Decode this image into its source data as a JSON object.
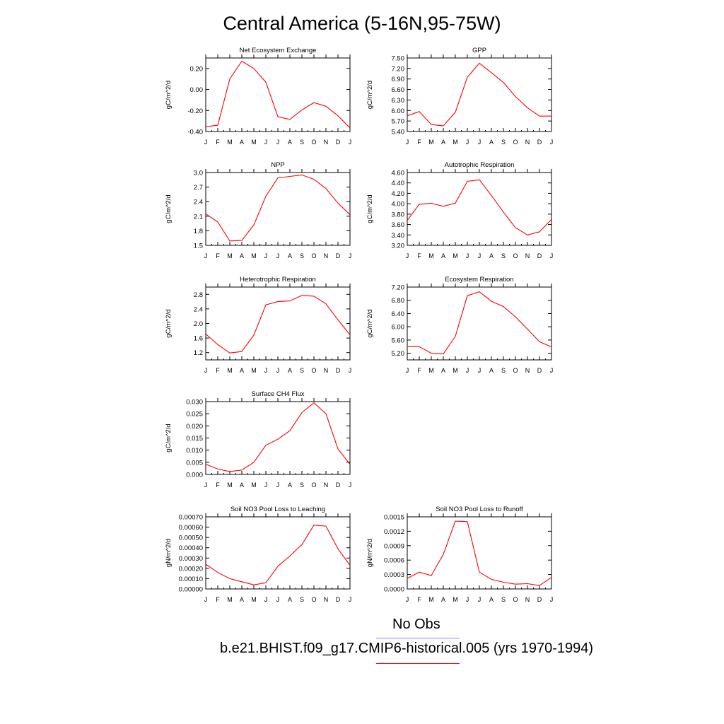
{
  "title": "Central America (5-16N,95-75W)",
  "legend": [
    {
      "label": "No Obs",
      "color": "#8080ff"
    },
    {
      "label": "b.e21.BHIST.f09_g17.CMIP6-historical.005 (yrs 1970-1994)",
      "color": "#ff0000"
    }
  ],
  "chart_data": [
    {
      "type": "line",
      "title": "Net Ecosystem Exchange",
      "ylabel": "gC/m^2/d",
      "categories": [
        "J",
        "F",
        "M",
        "A",
        "M",
        "J",
        "J",
        "A",
        "S",
        "O",
        "N",
        "D",
        "J"
      ],
      "ylim": [
        -0.4,
        0.3
      ],
      "yticks": [
        "0.20",
        "0.00",
        "-0.20",
        "-0.40"
      ],
      "series": [
        {
          "color": "#ff0000",
          "values": [
            -0.355,
            -0.34,
            0.1,
            0.27,
            0.2,
            0.07,
            -0.26,
            -0.285,
            -0.195,
            -0.125,
            -0.16,
            -0.25,
            -0.365
          ]
        }
      ]
    },
    {
      "type": "line",
      "title": "GPP",
      "ylabel": "gC/m^2/d",
      "categories": [
        "J",
        "F",
        "M",
        "A",
        "M",
        "J",
        "J",
        "A",
        "S",
        "O",
        "N",
        "D",
        "J"
      ],
      "ylim": [
        5.4,
        7.5
      ],
      "yticks": [
        "7.50",
        "7.20",
        "6.90",
        "6.60",
        "6.30",
        "6.00",
        "5.70",
        "5.40"
      ],
      "series": [
        {
          "color": "#ff0000",
          "values": [
            5.85,
            5.97,
            5.6,
            5.56,
            5.95,
            6.95,
            7.35,
            7.08,
            6.8,
            6.4,
            6.08,
            5.84,
            5.84
          ]
        }
      ]
    },
    {
      "type": "line",
      "title": "NPP",
      "ylabel": "gC/m^2/d",
      "categories": [
        "J",
        "F",
        "M",
        "A",
        "M",
        "J",
        "J",
        "A",
        "S",
        "O",
        "N",
        "D",
        "J"
      ],
      "ylim": [
        1.5,
        3.0
      ],
      "yticks": [
        "3.0",
        "2.7",
        "2.4",
        "2.1",
        "1.8",
        "1.5"
      ],
      "series": [
        {
          "color": "#ff0000",
          "values": [
            2.15,
            1.98,
            1.59,
            1.6,
            1.92,
            2.51,
            2.89,
            2.92,
            2.95,
            2.86,
            2.67,
            2.37,
            2.13
          ]
        }
      ]
    },
    {
      "type": "line",
      "title": "Autotrophic Respiration",
      "ylabel": "gC/m^2/d",
      "categories": [
        "J",
        "F",
        "M",
        "A",
        "M",
        "J",
        "J",
        "A",
        "S",
        "O",
        "N",
        "D",
        "J"
      ],
      "ylim": [
        3.2,
        4.6
      ],
      "yticks": [
        "4.60",
        "4.40",
        "4.20",
        "4.00",
        "3.80",
        "3.60",
        "3.40",
        "3.20"
      ],
      "series": [
        {
          "color": "#ff0000",
          "values": [
            3.68,
            3.99,
            4.01,
            3.95,
            4.01,
            4.43,
            4.46,
            4.16,
            3.84,
            3.54,
            3.4,
            3.46,
            3.7
          ]
        }
      ]
    },
    {
      "type": "line",
      "title": "Heterotrophic Respiration",
      "ylabel": "gC/m^2/d",
      "categories": [
        "J",
        "F",
        "M",
        "A",
        "M",
        "J",
        "J",
        "A",
        "S",
        "O",
        "N",
        "D",
        "J"
      ],
      "ylim": [
        1.0,
        3.0
      ],
      "yticks": [
        "2.8",
        "2.4",
        "2.0",
        "1.6",
        "1.2"
      ],
      "series": [
        {
          "color": "#ff0000",
          "values": [
            1.71,
            1.42,
            1.19,
            1.23,
            1.68,
            2.51,
            2.6,
            2.62,
            2.77,
            2.75,
            2.54,
            2.1,
            1.69
          ]
        }
      ]
    },
    {
      "type": "line",
      "title": "Ecosystem Respiration",
      "ylabel": "gC/m^2/d",
      "categories": [
        "J",
        "F",
        "M",
        "A",
        "M",
        "J",
        "J",
        "A",
        "S",
        "O",
        "N",
        "D",
        "J"
      ],
      "ylim": [
        5.0,
        7.2
      ],
      "yticks": [
        "7.20",
        "6.80",
        "6.40",
        "6.00",
        "5.60",
        "5.20"
      ],
      "series": [
        {
          "color": "#ff0000",
          "values": [
            5.4,
            5.4,
            5.2,
            5.18,
            5.71,
            6.94,
            7.06,
            6.77,
            6.61,
            6.3,
            5.93,
            5.55,
            5.39
          ]
        }
      ]
    },
    {
      "type": "line",
      "title": "Surface CH4 Flux",
      "ylabel": "gC/m^2/d",
      "categories": [
        "J",
        "F",
        "M",
        "A",
        "M",
        "J",
        "J",
        "A",
        "S",
        "O",
        "N",
        "D",
        "J"
      ],
      "ylim": [
        0.0,
        0.03
      ],
      "yticks": [
        "0.030",
        "0.025",
        "0.020",
        "0.015",
        "0.010",
        "0.005",
        "0.000"
      ],
      "series": [
        {
          "color": "#ff0000",
          "values": [
            0.0042,
            0.0022,
            0.0012,
            0.0018,
            0.005,
            0.012,
            0.0145,
            0.018,
            0.0255,
            0.0295,
            0.025,
            0.0105,
            0.0042
          ]
        }
      ]
    },
    {
      "type": "line",
      "title": "Soil NO3 Pool Loss to Leaching",
      "ylabel": "gN/m^2/d",
      "categories": [
        "J",
        "F",
        "M",
        "A",
        "M",
        "J",
        "J",
        "A",
        "S",
        "O",
        "N",
        "D",
        "J"
      ],
      "ylim": [
        0.0,
        0.0007
      ],
      "yticks": [
        "0.00070",
        "0.00060",
        "0.00050",
        "0.00040",
        "0.00030",
        "0.00020",
        "0.00010",
        "0.00000"
      ],
      "series": [
        {
          "color": "#ff0000",
          "values": [
            0.00024,
            0.00016,
            0.0001,
            7e-05,
            4e-05,
            6e-05,
            0.00022,
            0.00032,
            0.00043,
            0.00062,
            0.00061,
            0.00039,
            0.00023
          ]
        }
      ]
    },
    {
      "type": "line",
      "title": "Soil NO3 Pool Loss to Runoff",
      "ylabel": "gN/m^2/d",
      "categories": [
        "J",
        "F",
        "M",
        "A",
        "M",
        "J",
        "J",
        "A",
        "S",
        "O",
        "N",
        "D",
        "J"
      ],
      "ylim": [
        0.0,
        0.0015
      ],
      "yticks": [
        "0.0015",
        "0.0012",
        "0.0009",
        "0.0006",
        "0.0003",
        "0.0000"
      ],
      "series": [
        {
          "color": "#ff0000",
          "values": [
            0.00022,
            0.00035,
            0.00028,
            0.00072,
            0.00141,
            0.0014,
            0.00035,
            0.0002,
            0.00014,
            0.0001,
            0.00011,
            7e-05,
            0.00024
          ]
        }
      ]
    }
  ]
}
